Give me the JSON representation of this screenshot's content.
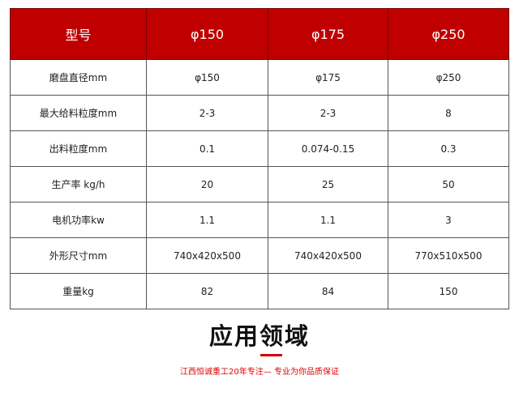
{
  "table": {
    "header": [
      "型号",
      "φ150",
      "φ175",
      "φ250"
    ],
    "rows": [
      [
        "磨盘直径mm",
        "φ150",
        "φ175",
        "φ250"
      ],
      [
        "最大给料粒度mm",
        "2-3",
        "2-3",
        "8"
      ],
      [
        "出料粒度mm",
        "0.1",
        "0.074-0.15",
        "0.3"
      ],
      [
        "生产率 kg/h",
        "20",
        "25",
        "50"
      ],
      [
        "电机功率kw",
        "1.1",
        "1.1",
        "3"
      ],
      [
        "外形尺寸mm",
        "740x420x500",
        "740x420x500",
        "770x510x500"
      ],
      [
        "重量kg",
        "82",
        "84",
        "150"
      ]
    ]
  },
  "section": {
    "title": "应用领域",
    "subtitle": "江西恒诚重工20年专注— 专业为你品质保证"
  },
  "colors": {
    "header_bg": "#c00000",
    "accent": "#d00000"
  }
}
